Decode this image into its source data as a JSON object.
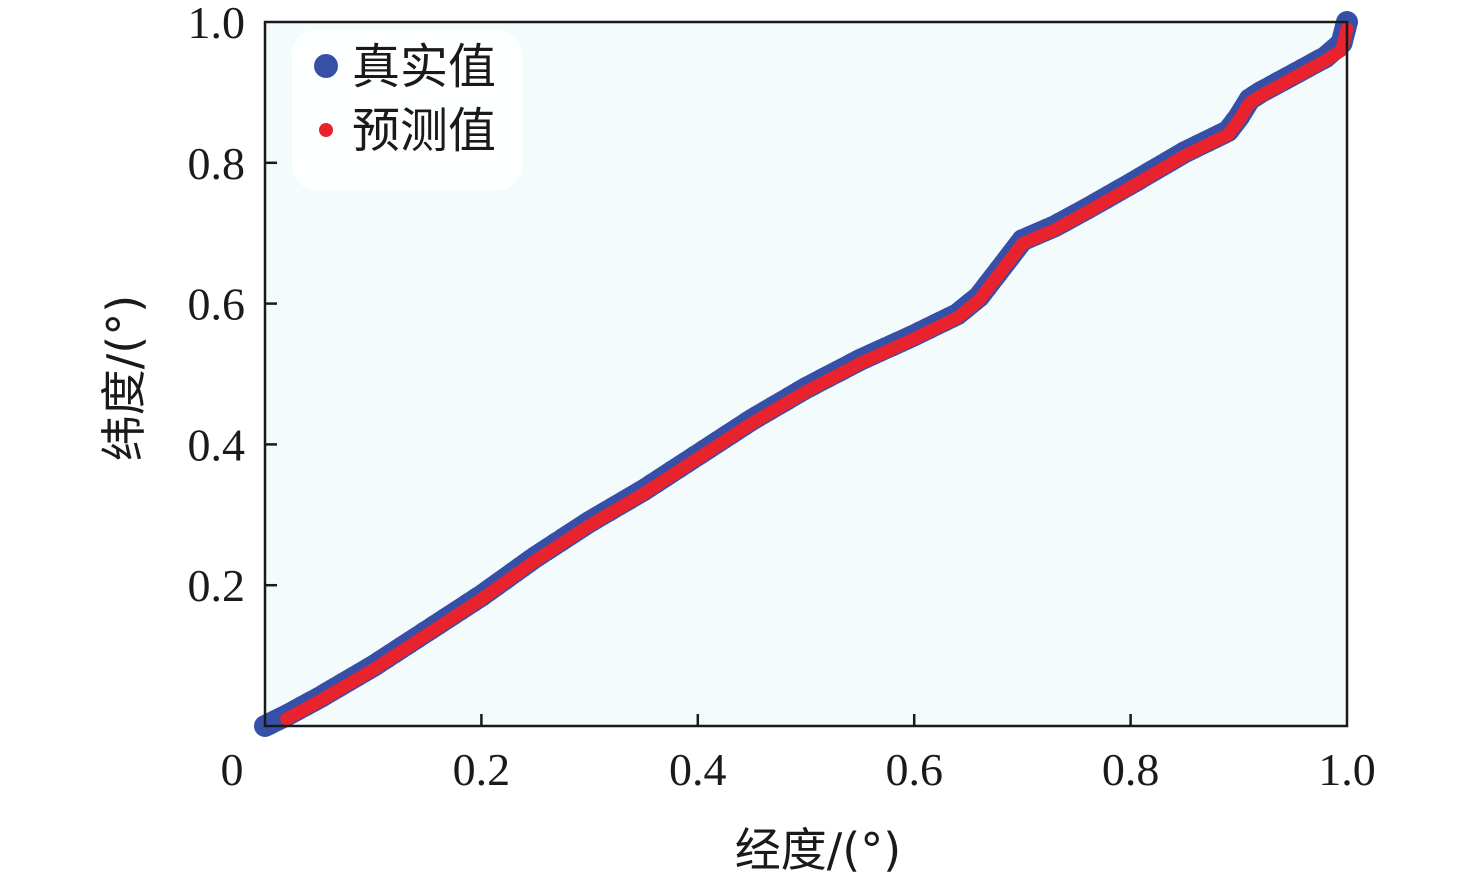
{
  "chart_data": {
    "type": "scatter",
    "xlabel": "经度/(°)",
    "ylabel": "纬度/(°)",
    "xlim": [
      0,
      1.0
    ],
    "ylim": [
      0,
      1.0
    ],
    "x_ticks": [
      {
        "value": 0,
        "label": "0"
      },
      {
        "value": 0.2,
        "label": "0.2"
      },
      {
        "value": 0.4,
        "label": "0.4"
      },
      {
        "value": 0.6,
        "label": "0.6"
      },
      {
        "value": 0.8,
        "label": "0.8"
      },
      {
        "value": 1.0,
        "label": "1.0"
      }
    ],
    "y_ticks": [
      {
        "value": 0.2,
        "label": "0.2"
      },
      {
        "value": 0.4,
        "label": "0.4"
      },
      {
        "value": 0.6,
        "label": "0.6"
      },
      {
        "value": 0.8,
        "label": "0.8"
      },
      {
        "value": 1.0,
        "label": "1.0"
      }
    ],
    "grid": false,
    "legend_position": "top-left",
    "background_color": "#f4fbfd",
    "series": [
      {
        "name": "真实值",
        "color": "#3650a8",
        "marker": "large-dot",
        "x": [
          0.0,
          0.02,
          0.05,
          0.1,
          0.15,
          0.2,
          0.25,
          0.3,
          0.35,
          0.4,
          0.45,
          0.5,
          0.55,
          0.6,
          0.64,
          0.66,
          0.68,
          0.7,
          0.73,
          0.76,
          0.8,
          0.85,
          0.89,
          0.9,
          0.91,
          0.92,
          0.95,
          0.98,
          0.995,
          1.0
        ],
        "y": [
          0.0,
          0.015,
          0.04,
          0.085,
          0.135,
          0.185,
          0.24,
          0.29,
          0.335,
          0.385,
          0.435,
          0.48,
          0.52,
          0.555,
          0.585,
          0.61,
          0.65,
          0.69,
          0.71,
          0.735,
          0.77,
          0.815,
          0.845,
          0.865,
          0.89,
          0.9,
          0.925,
          0.95,
          0.97,
          1.0
        ]
      },
      {
        "name": "预测值",
        "color": "#e8232e",
        "marker": "small-dot",
        "x": [
          0.02,
          0.05,
          0.1,
          0.15,
          0.2,
          0.25,
          0.3,
          0.35,
          0.4,
          0.45,
          0.5,
          0.55,
          0.6,
          0.64,
          0.66,
          0.68,
          0.7,
          0.73,
          0.76,
          0.8,
          0.85,
          0.89,
          0.9,
          0.91,
          0.92,
          0.95,
          0.98,
          0.995,
          1.0
        ],
        "y": [
          0.01,
          0.035,
          0.08,
          0.13,
          0.18,
          0.235,
          0.285,
          0.33,
          0.38,
          0.43,
          0.475,
          0.515,
          0.55,
          0.58,
          0.605,
          0.645,
          0.685,
          0.705,
          0.73,
          0.765,
          0.81,
          0.84,
          0.86,
          0.885,
          0.895,
          0.92,
          0.945,
          0.96,
          0.99
        ]
      }
    ]
  }
}
